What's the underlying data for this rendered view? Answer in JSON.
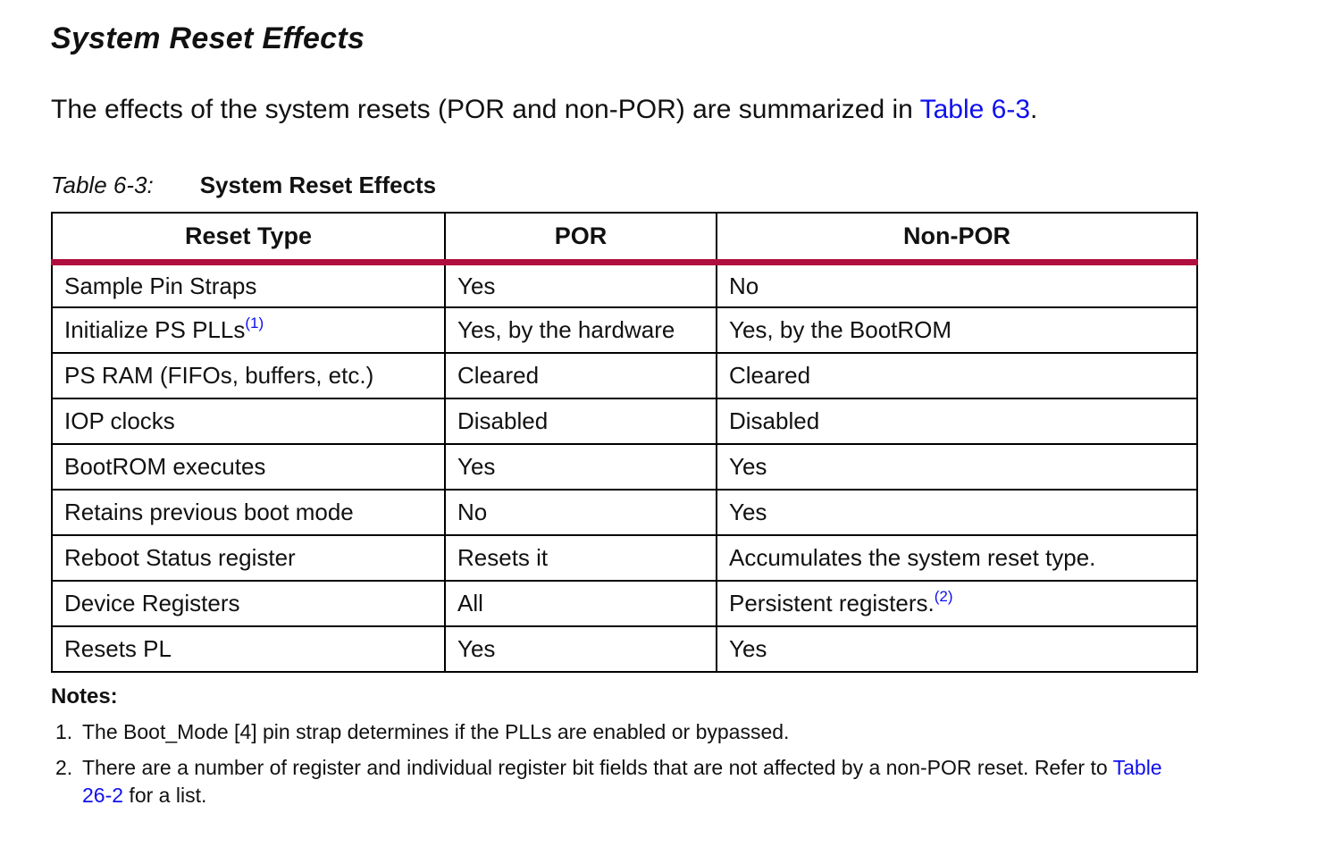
{
  "page": {
    "title": "System Reset Effects",
    "intro": {
      "text_before_link": "The effects of the system resets (POR and non-POR) are summarized in ",
      "link": "Table 6-3",
      "text_after_link": "."
    },
    "caption": {
      "label": "Table 6-3:",
      "title": "System Reset Effects"
    },
    "table": {
      "headers": [
        "Reset Type",
        "POR",
        "Non-POR"
      ],
      "column_names": [
        "cell-reset-type",
        "cell-por",
        "cell-non-por"
      ],
      "rows": [
        [
          {
            "text": "Sample Pin Straps"
          },
          {
            "text": "Yes"
          },
          {
            "text": "No"
          }
        ],
        [
          {
            "text": "Initialize PS PLLs",
            "sup": "(1)"
          },
          {
            "text": "Yes, by the hardware"
          },
          {
            "text": "Yes, by the BootROM"
          }
        ],
        [
          {
            "text": "PS RAM (FIFOs, buffers, etc.)"
          },
          {
            "text": "Cleared"
          },
          {
            "text": "Cleared"
          }
        ],
        [
          {
            "text": "IOP clocks"
          },
          {
            "text": "Disabled"
          },
          {
            "text": "Disabled"
          }
        ],
        [
          {
            "text": "BootROM executes"
          },
          {
            "text": "Yes"
          },
          {
            "text": "Yes"
          }
        ],
        [
          {
            "text": "Retains previous boot mode"
          },
          {
            "text": "No"
          },
          {
            "text": "Yes"
          }
        ],
        [
          {
            "text": "Reboot Status register"
          },
          {
            "text": "Resets it"
          },
          {
            "text": "Accumulates the system reset type."
          }
        ],
        [
          {
            "text": "Device Registers"
          },
          {
            "text": "All"
          },
          {
            "text": "Persistent registers.",
            "sup": "(2)"
          }
        ],
        [
          {
            "text": "Resets PL"
          },
          {
            "text": "Yes"
          },
          {
            "text": "Yes"
          }
        ]
      ]
    },
    "notes": {
      "heading": "Notes:",
      "items": [
        {
          "num": "1.",
          "text": "The Boot_Mode [4] pin strap determines if the PLLs are enabled or bypassed."
        },
        {
          "num": "2.",
          "text_before_link": "There are a number of register and individual register bit fields that are not affected by a non-POR reset. Refer to ",
          "link": "Table 26-2",
          "text_after_link": " for a list."
        }
      ]
    },
    "colors": {
      "accent_red": "#B00E3E",
      "link_blue": "#0F0FEE",
      "border_black": "#000000"
    }
  }
}
